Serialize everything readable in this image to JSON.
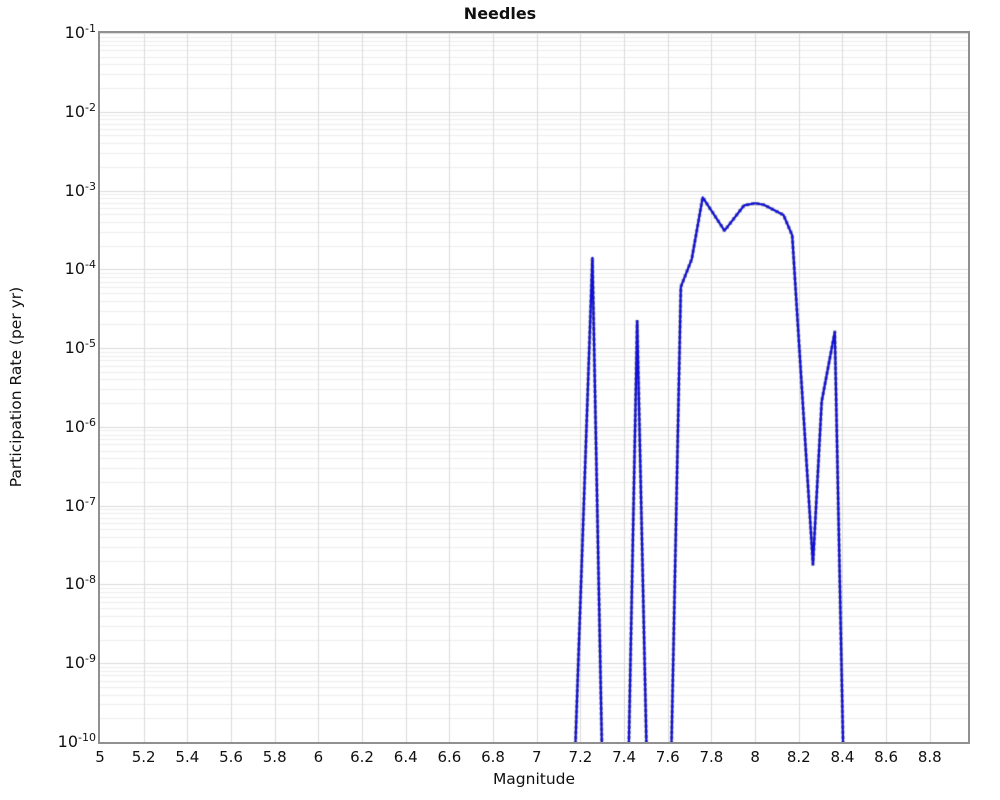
{
  "chart_data": {
    "type": "line",
    "title": "Needles",
    "xlabel": "Magnitude",
    "ylabel": "Participation Rate (per yr)",
    "x_axis": {
      "min": 5,
      "max": 8.975,
      "tick_values": [
        5,
        5.2,
        5.4,
        5.6,
        5.8,
        6,
        6.2,
        6.4,
        6.6,
        6.8,
        7,
        7.2,
        7.4,
        7.6,
        7.8,
        8,
        8.2,
        8.4,
        8.6,
        8.8
      ],
      "tick_labels": [
        "5",
        "5.2",
        "5.4",
        "5.6",
        "5.8",
        "6",
        "6.2",
        "6.4",
        "6.6",
        "6.8",
        "7",
        "7.2",
        "7.4",
        "7.6",
        "7.8",
        "8",
        "8.2",
        "8.4",
        "8.6",
        "8.8"
      ]
    },
    "y_axis": {
      "scale": "log",
      "min_exponent": -10,
      "max_exponent": -1,
      "tick_exponents": [
        -1,
        -2,
        -3,
        -4,
        -5,
        -6,
        -7,
        -8,
        -9,
        -10
      ],
      "tick_base": "10"
    },
    "grid": {
      "show": true,
      "show_minor_y": true,
      "major_color": "#dcdcdc",
      "minor_color": "#eeeeee"
    },
    "style": {
      "line_color": "#0f10d8",
      "line_width": 2.2,
      "marker_color": "#8c8c8c",
      "marker_size": 3.4,
      "marker_spacing_px": 5.2,
      "frame_color": "#909090",
      "background": "#ffffff"
    },
    "series": [
      {
        "name": "participation-rate",
        "segments": [
          [
            [
              7.165,
              1e-11
            ],
            [
              7.255,
              0.00014
            ],
            [
              7.305,
              1e-11
            ]
          ],
          [
            [
              7.415,
              1e-11
            ],
            [
              7.46,
              2.2e-05
            ],
            [
              7.51,
              1e-11
            ]
          ],
          [
            [
              7.61,
              1e-11
            ],
            [
              7.66,
              6e-05
            ],
            [
              7.71,
              0.000135
            ],
            [
              7.76,
              0.00082
            ],
            [
              7.86,
              0.00031
            ],
            [
              7.95,
              0.00065
            ],
            [
              8.0,
              0.00069
            ],
            [
              8.04,
              0.00066
            ],
            [
              8.13,
              0.00049
            ],
            [
              8.17,
              0.00027
            ],
            [
              8.265,
              1.8e-08
            ],
            [
              8.305,
              2.1e-06
            ],
            [
              8.365,
              1.6e-05
            ],
            [
              8.41,
              1e-11
            ]
          ]
        ]
      }
    ]
  }
}
